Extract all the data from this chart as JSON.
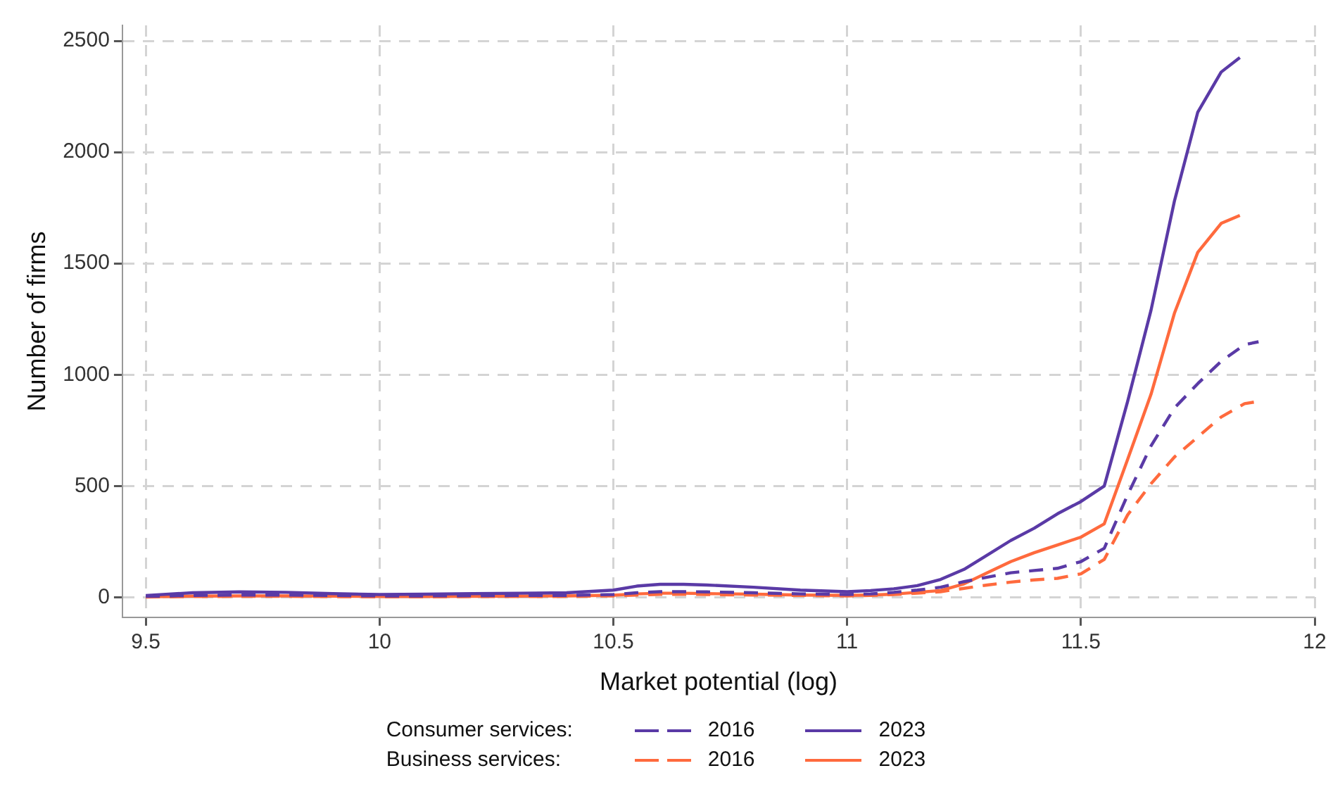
{
  "chart_data": {
    "type": "line",
    "xlabel": "Market potential (log)",
    "ylabel": "Number of firms",
    "xlim": [
      9.45,
      12
    ],
    "xticks": [
      9.5,
      10,
      10.5,
      11,
      11.5,
      12
    ],
    "ylim": [
      -90,
      2570
    ],
    "yticks": [
      0,
      500,
      1000,
      1500,
      2000,
      2500
    ],
    "grid": true,
    "legend": "bottom",
    "marker": "none",
    "annotations": [
      "Consumer services:",
      "Business services:"
    ],
    "series": [
      {
        "name": "2016",
        "color": "#5a3aa6",
        "line_style": "dashed",
        "x": [
          9.5,
          9.6,
          9.7,
          9.8,
          9.9,
          10,
          10.1,
          10.2,
          10.3,
          10.4,
          10.5,
          10.55,
          10.6,
          10.65,
          10.7,
          10.8,
          10.9,
          11,
          11.05,
          11.1,
          11.15,
          11.2,
          11.25,
          11.3,
          11.35,
          11.4,
          11.45,
          11.5,
          11.55,
          11.6,
          11.65,
          11.7,
          11.75,
          11.8,
          11.85,
          11.88
        ],
        "values": [
          4,
          8,
          10,
          10,
          8,
          6,
          6,
          7,
          8,
          8,
          12,
          20,
          25,
          25,
          24,
          20,
          15,
          12,
          15,
          22,
          32,
          45,
          70,
          90,
          110,
          120,
          130,
          160,
          220,
          460,
          680,
          850,
          960,
          1060,
          1135,
          1148
        ]
      },
      {
        "name": "2023",
        "color": "#5a3aa6",
        "line_style": "solid",
        "x": [
          9.5,
          9.6,
          9.7,
          9.8,
          9.9,
          10,
          10.1,
          10.2,
          10.3,
          10.4,
          10.5,
          10.55,
          10.6,
          10.65,
          10.7,
          10.8,
          10.9,
          11,
          11.05,
          11.1,
          11.15,
          11.2,
          11.25,
          11.3,
          11.35,
          11.4,
          11.45,
          11.5,
          11.55,
          11.6,
          11.65,
          11.7,
          11.75,
          11.8,
          11.84
        ],
        "values": [
          8,
          20,
          24,
          22,
          16,
          12,
          14,
          16,
          18,
          20,
          32,
          50,
          58,
          58,
          55,
          45,
          32,
          25,
          30,
          38,
          52,
          80,
          125,
          190,
          255,
          310,
          375,
          430,
          500,
          880,
          1290,
          1780,
          2180,
          2360,
          2425
        ]
      },
      {
        "name": "2016",
        "color": "#ff6a3d",
        "line_style": "dashed",
        "x": [
          9.5,
          9.6,
          9.7,
          9.8,
          9.9,
          10,
          10.1,
          10.2,
          10.3,
          10.4,
          10.5,
          10.55,
          10.6,
          10.65,
          10.7,
          10.8,
          10.9,
          11,
          11.05,
          11.1,
          11.15,
          11.2,
          11.25,
          11.3,
          11.35,
          11.4,
          11.45,
          11.5,
          11.55,
          11.6,
          11.65,
          11.7,
          11.75,
          11.8,
          11.85,
          11.88
        ],
        "values": [
          1,
          3,
          4,
          4,
          3,
          2,
          2,
          3,
          3,
          4,
          6,
          10,
          13,
          13,
          12,
          10,
          8,
          6,
          8,
          12,
          18,
          25,
          40,
          55,
          68,
          78,
          85,
          105,
          170,
          370,
          510,
          630,
          720,
          810,
          870,
          880
        ]
      },
      {
        "name": "2023",
        "color": "#ff6a3d",
        "line_style": "solid",
        "x": [
          9.5,
          9.6,
          9.7,
          9.8,
          9.9,
          10,
          10.1,
          10.2,
          10.3,
          10.4,
          10.5,
          10.55,
          10.6,
          10.65,
          10.7,
          10.8,
          10.9,
          11,
          11.05,
          11.1,
          11.15,
          11.2,
          11.25,
          11.3,
          11.35,
          11.4,
          11.45,
          11.5,
          11.55,
          11.6,
          11.65,
          11.7,
          11.75,
          11.8,
          11.84
        ],
        "values": [
          2,
          5,
          6,
          6,
          5,
          3,
          3,
          4,
          5,
          6,
          9,
          15,
          18,
          18,
          16,
          14,
          10,
          8,
          10,
          14,
          22,
          30,
          60,
          110,
          160,
          200,
          235,
          270,
          330,
          620,
          912,
          1276,
          1550,
          1680,
          1716
        ]
      }
    ]
  }
}
